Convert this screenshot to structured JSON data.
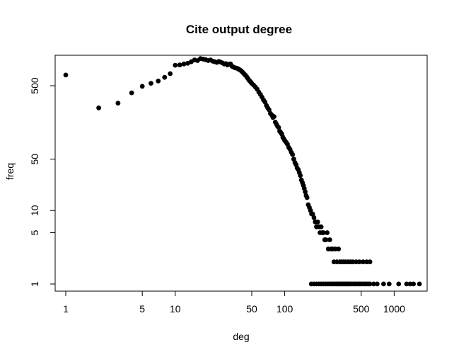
{
  "chart_data": {
    "type": "scatter",
    "title": "Cite output degree",
    "xlabel": "deg",
    "ylabel": "freq",
    "xscale": "log",
    "yscale": "log",
    "xlim": [
      0.8,
      2000
    ],
    "ylim": [
      0.8,
      1300
    ],
    "xticks": [
      1,
      5,
      10,
      50,
      100,
      500,
      1000
    ],
    "xtick_labels": [
      "1",
      "5",
      "10",
      "50",
      "100",
      "500",
      "1000"
    ],
    "yticks": [
      1,
      5,
      10,
      50,
      500
    ],
    "ytick_labels": [
      "1",
      "5",
      "10",
      "50",
      "500"
    ],
    "grid": false,
    "marker_color": "#000000",
    "points": [
      [
        1,
        700
      ],
      [
        2,
        250
      ],
      [
        3,
        290
      ],
      [
        4,
        400
      ],
      [
        5,
        490
      ],
      [
        6,
        540
      ],
      [
        7,
        580
      ],
      [
        8,
        650
      ],
      [
        9,
        730
      ],
      [
        10,
        950
      ],
      [
        11,
        960
      ],
      [
        12,
        990
      ],
      [
        13,
        1010
      ],
      [
        14,
        1060
      ],
      [
        15,
        1120
      ],
      [
        16,
        1100
      ],
      [
        17,
        1170
      ],
      [
        18,
        1150
      ],
      [
        19,
        1130
      ],
      [
        20,
        1100
      ],
      [
        21,
        1120
      ],
      [
        22,
        1080
      ],
      [
        23,
        1060
      ],
      [
        24,
        1040
      ],
      [
        25,
        1070
      ],
      [
        26,
        1050
      ],
      [
        27,
        1020
      ],
      [
        28,
        990
      ],
      [
        29,
        1000
      ],
      [
        30,
        960
      ],
      [
        31,
        980
      ],
      [
        32,
        990
      ],
      [
        33,
        920
      ],
      [
        34,
        900
      ],
      [
        35,
        880
      ],
      [
        36,
        870
      ],
      [
        37,
        860
      ],
      [
        38,
        840
      ],
      [
        39,
        820
      ],
      [
        40,
        800
      ],
      [
        41,
        770
      ],
      [
        42,
        740
      ],
      [
        43,
        710
      ],
      [
        44,
        690
      ],
      [
        45,
        660
      ],
      [
        46,
        630
      ],
      [
        47,
        600
      ],
      [
        48,
        580
      ],
      [
        49,
        560
      ],
      [
        50,
        540
      ],
      [
        52,
        510
      ],
      [
        54,
        480
      ],
      [
        56,
        450
      ],
      [
        58,
        410
      ],
      [
        60,
        380
      ],
      [
        62,
        350
      ],
      [
        64,
        320
      ],
      [
        66,
        300
      ],
      [
        68,
        270
      ],
      [
        70,
        250
      ],
      [
        72,
        235
      ],
      [
        74,
        210
      ],
      [
        76,
        200
      ],
      [
        78,
        185
      ],
      [
        80,
        190
      ],
      [
        82,
        160
      ],
      [
        84,
        150
      ],
      [
        86,
        140
      ],
      [
        88,
        135
      ],
      [
        90,
        120
      ],
      [
        92,
        115
      ],
      [
        94,
        110
      ],
      [
        96,
        100
      ],
      [
        98,
        95
      ],
      [
        100,
        90
      ],
      [
        103,
        85
      ],
      [
        106,
        80
      ],
      [
        109,
        72
      ],
      [
        112,
        68
      ],
      [
        115,
        62
      ],
      [
        118,
        58
      ],
      [
        121,
        50
      ],
      [
        124,
        45
      ],
      [
        127,
        42
      ],
      [
        130,
        38
      ],
      [
        133,
        36
      ],
      [
        136,
        33
      ],
      [
        139,
        30
      ],
      [
        142,
        26
      ],
      [
        145,
        24
      ],
      [
        148,
        22
      ],
      [
        151,
        20
      ],
      [
        154,
        18
      ],
      [
        157,
        16
      ],
      [
        160,
        15
      ],
      [
        164,
        12
      ],
      [
        168,
        11
      ],
      [
        172,
        10
      ],
      [
        176,
        9
      ],
      [
        180,
        9
      ],
      [
        185,
        8
      ],
      [
        190,
        7
      ],
      [
        195,
        6
      ],
      [
        200,
        7
      ],
      [
        205,
        6
      ],
      [
        210,
        5
      ],
      [
        215,
        6
      ],
      [
        220,
        5
      ],
      [
        226,
        5
      ],
      [
        232,
        4
      ],
      [
        238,
        4
      ],
      [
        244,
        5
      ],
      [
        250,
        3
      ],
      [
        258,
        4
      ],
      [
        266,
        3
      ],
      [
        274,
        3
      ],
      [
        282,
        2
      ],
      [
        290,
        3
      ],
      [
        300,
        2
      ],
      [
        310,
        3
      ],
      [
        320,
        2
      ],
      [
        330,
        2
      ],
      [
        345,
        2
      ],
      [
        360,
        2
      ],
      [
        380,
        2
      ],
      [
        400,
        2
      ],
      [
        420,
        2
      ],
      [
        450,
        2
      ],
      [
        480,
        2
      ],
      [
        520,
        2
      ],
      [
        560,
        2
      ],
      [
        600,
        2
      ],
      [
        175,
        1
      ],
      [
        185,
        1
      ],
      [
        195,
        1
      ],
      [
        205,
        1
      ],
      [
        215,
        1
      ],
      [
        225,
        1
      ],
      [
        235,
        1
      ],
      [
        245,
        1
      ],
      [
        255,
        1
      ],
      [
        265,
        1
      ],
      [
        275,
        1
      ],
      [
        285,
        1
      ],
      [
        295,
        1
      ],
      [
        305,
        1
      ],
      [
        315,
        1
      ],
      [
        325,
        1
      ],
      [
        335,
        1
      ],
      [
        345,
        1
      ],
      [
        355,
        1
      ],
      [
        365,
        1
      ],
      [
        375,
        1
      ],
      [
        385,
        1
      ],
      [
        395,
        1
      ],
      [
        410,
        1
      ],
      [
        425,
        1
      ],
      [
        440,
        1
      ],
      [
        455,
        1
      ],
      [
        470,
        1
      ],
      [
        485,
        1
      ],
      [
        500,
        1
      ],
      [
        520,
        1
      ],
      [
        540,
        1
      ],
      [
        560,
        1
      ],
      [
        580,
        1
      ],
      [
        600,
        1
      ],
      [
        650,
        1
      ],
      [
        700,
        1
      ],
      [
        800,
        1
      ],
      [
        900,
        1
      ],
      [
        1100,
        1
      ],
      [
        1300,
        1
      ],
      [
        1400,
        1
      ],
      [
        1500,
        1
      ],
      [
        1700,
        1
      ]
    ]
  }
}
